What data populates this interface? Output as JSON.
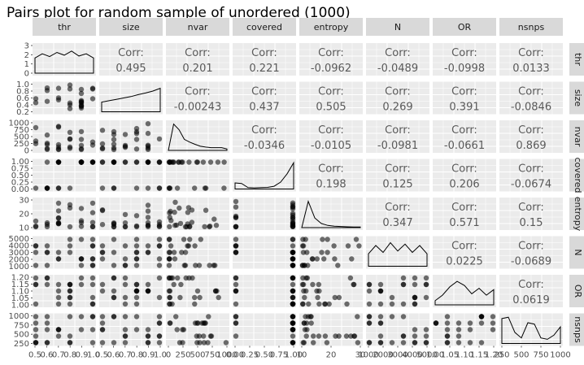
{
  "chart_data": {
    "type": "scatter",
    "title": "Pairs plot for random sample of unordered (1000)",
    "corr_label": "Corr:",
    "variables": [
      "thr",
      "size",
      "nvar",
      "covered",
      "entropy",
      "N",
      "OR",
      "nsnps"
    ],
    "y_tick_labels": {
      "thr": [
        "3",
        "2",
        "1",
        "0"
      ],
      "size": [
        "1.0",
        "0.8",
        "0.6",
        "0.4",
        "0.2"
      ],
      "nvar": [
        "1000",
        "750",
        "500",
        "250",
        "0"
      ],
      "covered": [
        "1.00",
        "0.75",
        "0.50",
        "0.25",
        "0.00"
      ],
      "entropy": [
        "30",
        "20",
        "10"
      ],
      "N": [
        "5000",
        "4000",
        "3000",
        "2000",
        "1000"
      ],
      "OR": [
        "1.20",
        "1.15",
        "1.10",
        "1.05",
        "1.00"
      ],
      "nsnps": [
        "1000",
        "750",
        "500",
        "250"
      ]
    },
    "x_tick_labels": {
      "thr": [
        "0.5",
        "0.6",
        "0.7",
        "0.8",
        "0.9",
        "1.0"
      ],
      "size": [
        "0.5",
        "0.6",
        "0.7",
        "0.8",
        "0.9",
        "1.0"
      ],
      "nvar": [
        "0",
        "250",
        "500",
        "750",
        "1000"
      ],
      "covered": [
        "0.00",
        "0.25",
        "0.50",
        "0.75",
        "1.00"
      ],
      "entropy": [
        "10",
        "20",
        "30"
      ],
      "N": [
        "1000",
        "2000",
        "3000",
        "4000",
        "5000"
      ],
      "OR": [
        "1.00",
        "1.05",
        "1.10",
        "1.15",
        "1.20"
      ],
      "nsnps": [
        "250",
        "500",
        "750",
        "1000"
      ]
    },
    "correlations": [
      {
        "row": "size",
        "col": "thr",
        "value": "0.495"
      },
      {
        "row": "nvar",
        "col": "thr",
        "value": "0.201"
      },
      {
        "row": "covered",
        "col": "thr",
        "value": "0.221"
      },
      {
        "row": "entropy",
        "col": "thr",
        "value": "-0.0962"
      },
      {
        "row": "N",
        "col": "thr",
        "value": "-0.0489"
      },
      {
        "row": "OR",
        "col": "thr",
        "value": "-0.0998"
      },
      {
        "row": "nsnps",
        "col": "thr",
        "value": "0.0133"
      },
      {
        "row": "nvar",
        "col": "size",
        "value": "-0.00243"
      },
      {
        "row": "covered",
        "col": "size",
        "value": "0.437"
      },
      {
        "row": "entropy",
        "col": "size",
        "value": "0.505"
      },
      {
        "row": "N",
        "col": "size",
        "value": "0.269"
      },
      {
        "row": "OR",
        "col": "size",
        "value": "0.391"
      },
      {
        "row": "nsnps",
        "col": "size",
        "value": "-0.0846"
      },
      {
        "row": "covered",
        "col": "nvar",
        "value": "-0.0346"
      },
      {
        "row": "entropy",
        "col": "nvar",
        "value": "-0.0105"
      },
      {
        "row": "N",
        "col": "nvar",
        "value": "-0.0981"
      },
      {
        "row": "OR",
        "col": "nvar",
        "value": "-0.0661"
      },
      {
        "row": "nsnps",
        "col": "nvar",
        "value": "0.869"
      },
      {
        "row": "entropy",
        "col": "covered",
        "value": "0.198"
      },
      {
        "row": "N",
        "col": "covered",
        "value": "0.125"
      },
      {
        "row": "OR",
        "col": "covered",
        "value": "0.206"
      },
      {
        "row": "nsnps",
        "col": "covered",
        "value": "-0.0674"
      },
      {
        "row": "N",
        "col": "entropy",
        "value": "0.347"
      },
      {
        "row": "OR",
        "col": "entropy",
        "value": "0.571"
      },
      {
        "row": "nsnps",
        "col": "entropy",
        "value": "0.15"
      },
      {
        "row": "OR",
        "col": "N",
        "value": "0.0225"
      },
      {
        "row": "nsnps",
        "col": "N",
        "value": "-0.0689"
      },
      {
        "row": "nsnps",
        "col": "OR",
        "value": "0.0619"
      }
    ],
    "diagonal_density": {
      "thr": [
        0.55,
        0.7,
        0.6,
        0.75,
        0.65,
        0.8,
        0.62,
        0.7,
        0.55
      ],
      "size": [
        0.35,
        0.4,
        0.45,
        0.5,
        0.55,
        0.62,
        0.68,
        0.75,
        0.85
      ],
      "nvar": [
        0.0,
        0.95,
        0.75,
        0.4,
        0.3,
        0.22,
        0.15,
        0.12,
        0.1,
        0.1,
        0.1,
        0.05
      ],
      "covered": [
        0.22,
        0.2,
        0.05,
        0.04,
        0.05,
        0.06,
        0.1,
        0.25,
        0.55,
        0.95
      ],
      "entropy": [
        0.0,
        0.95,
        0.35,
        0.15,
        0.08,
        0.05,
        0.04,
        0.03,
        0.02,
        0.02
      ],
      "N": [
        0.45,
        0.75,
        0.5,
        0.85,
        0.55,
        0.8,
        0.5,
        0.75,
        0.45
      ],
      "OR": [
        0.15,
        0.35,
        0.65,
        0.85,
        0.7,
        0.4,
        0.6,
        0.35,
        0.55
      ],
      "nsnps": [
        0.9,
        0.95,
        0.4,
        0.2,
        0.75,
        0.7,
        0.2,
        0.15,
        0.3,
        0.6
      ]
    },
    "grid": true,
    "point_color": "#000000",
    "panel_background": "#ebebeb",
    "strip_background": "#d9d9d9"
  }
}
